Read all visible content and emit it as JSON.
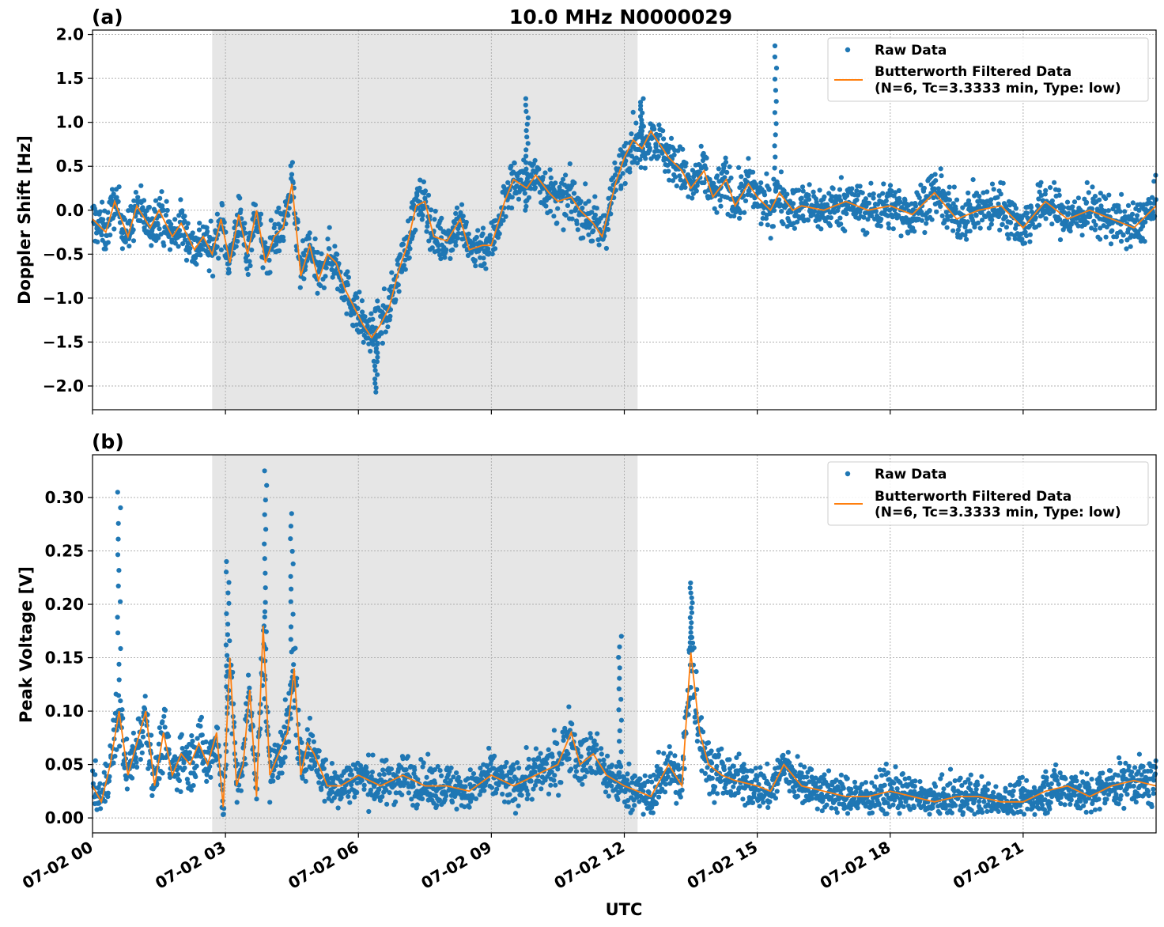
{
  "figure": {
    "title": "10.0 MHz N0000029",
    "xlabel": "UTC",
    "x_tick_labels": [
      "07-02 00",
      "07-02 03",
      "07-02 06",
      "07-02 09",
      "07-02 12",
      "07-02 15",
      "07-02 18",
      "07-02 21"
    ]
  },
  "panels": [
    {
      "label": "(a)",
      "ylabel": "Doppler Shift [Hz]",
      "y_tick_labels": [
        "−2.0",
        "−1.5",
        "−1.0",
        "−0.5",
        "0.0",
        "0.5",
        "1.0",
        "1.5",
        "2.0"
      ],
      "legend": {
        "raw": "Raw Data",
        "filtered_line1": "Butterworth Filtered Data",
        "filtered_line2": "(N=6, Tc=3.3333 min, Type: low)"
      }
    },
    {
      "label": "(b)",
      "ylabel": "Peak Voltage [V]",
      "y_tick_labels": [
        "0.00",
        "0.05",
        "0.10",
        "0.15",
        "0.20",
        "0.25",
        "0.30"
      ],
      "legend": {
        "raw": "Raw Data",
        "filtered_line1": "Butterworth Filtered Data",
        "filtered_line2": "(N=6, Tc=3.3333 min, Type: low)"
      }
    }
  ],
  "colors": {
    "raw": "#1f77b4",
    "filtered": "#ff7f0e",
    "shade": "#e6e6e6",
    "grid": "#b0b0b0"
  },
  "chart_data": [
    {
      "type": "scatter",
      "title": "10.0 MHz N0000029",
      "panel": "(a)",
      "xlabel": "UTC",
      "ylabel": "Doppler Shift [Hz]",
      "x_unit": "hours since 07-02 00:00 UTC",
      "xlim": [
        0,
        24
      ],
      "ylim": [
        -2.27,
        2.05
      ],
      "x_ticks": [
        0,
        3,
        6,
        9,
        12,
        15,
        18,
        21
      ],
      "y_ticks": [
        -2.0,
        -1.5,
        -1.0,
        -0.5,
        0.0,
        0.5,
        1.0,
        1.5,
        2.0
      ],
      "grid": true,
      "legend_position": "upper right",
      "shaded_x_range": [
        2.7,
        12.3
      ],
      "series": [
        {
          "name": "Butterworth Filtered Data",
          "style": "line",
          "x": [
            0,
            0.3,
            0.5,
            0.8,
            1.0,
            1.3,
            1.5,
            1.8,
            2.0,
            2.3,
            2.5,
            2.7,
            2.9,
            3.1,
            3.3,
            3.5,
            3.7,
            3.9,
            4.1,
            4.3,
            4.5,
            4.7,
            4.9,
            5.1,
            5.3,
            5.5,
            5.7,
            5.9,
            6.1,
            6.3,
            6.5,
            6.7,
            6.9,
            7.1,
            7.3,
            7.5,
            7.7,
            8.0,
            8.3,
            8.5,
            8.8,
            9.0,
            9.3,
            9.5,
            9.8,
            10.0,
            10.3,
            10.5,
            10.8,
            11.0,
            11.3,
            11.5,
            11.8,
            12.0,
            12.2,
            12.4,
            12.6,
            12.8,
            13.0,
            13.3,
            13.5,
            13.8,
            14.0,
            14.3,
            14.5,
            14.8,
            15.0,
            15.3,
            15.5,
            15.8,
            16.0,
            16.5,
            17.0,
            17.5,
            18.0,
            18.5,
            19.0,
            19.5,
            20.0,
            20.5,
            21.0,
            21.5,
            22.0,
            22.5,
            23.0,
            23.5,
            24.0
          ],
          "y": [
            -0.1,
            -0.25,
            0.1,
            -0.3,
            0.05,
            -0.2,
            0.0,
            -0.3,
            -0.15,
            -0.45,
            -0.3,
            -0.5,
            -0.1,
            -0.6,
            -0.05,
            -0.5,
            0.0,
            -0.6,
            -0.3,
            -0.2,
            0.3,
            -0.75,
            -0.4,
            -0.8,
            -0.5,
            -0.6,
            -0.9,
            -1.1,
            -1.3,
            -1.45,
            -1.3,
            -1.1,
            -0.7,
            -0.4,
            0.05,
            0.1,
            -0.3,
            -0.35,
            -0.1,
            -0.45,
            -0.4,
            -0.4,
            0.1,
            0.35,
            0.25,
            0.4,
            0.2,
            0.1,
            0.15,
            0.0,
            -0.15,
            -0.3,
            0.3,
            0.6,
            0.8,
            0.7,
            0.9,
            0.75,
            0.6,
            0.45,
            0.25,
            0.45,
            0.15,
            0.35,
            0.05,
            0.3,
            0.15,
            0.0,
            0.2,
            0.0,
            0.05,
            0.0,
            0.1,
            0.0,
            0.05,
            -0.05,
            0.2,
            -0.1,
            0.0,
            0.05,
            -0.2,
            0.1,
            -0.1,
            0.0,
            -0.1,
            -0.2,
            0.05
          ]
        },
        {
          "name": "Raw Data",
          "style": "dots",
          "description_envelope": "dense scatter around the filtered curve, spread about ±0.3 Hz",
          "peaks": [
            {
              "x": 15.4,
              "y": 1.87
            },
            {
              "x": 9.8,
              "y": 1.27
            },
            {
              "x": 12.4,
              "y": 1.27
            },
            {
              "x": 6.4,
              "y": -2.07
            }
          ]
        }
      ]
    },
    {
      "type": "scatter",
      "panel": "(b)",
      "xlabel": "UTC",
      "ylabel": "Peak Voltage [V]",
      "x_unit": "hours since 07-02 00:00 UTC",
      "xlim": [
        0,
        24
      ],
      "ylim": [
        -0.014,
        0.34
      ],
      "x_ticks": [
        0,
        3,
        6,
        9,
        12,
        15,
        18,
        21
      ],
      "y_ticks": [
        0.0,
        0.05,
        0.1,
        0.15,
        0.2,
        0.25,
        0.3
      ],
      "grid": true,
      "legend_position": "upper right",
      "shaded_x_range": [
        2.7,
        12.3
      ],
      "series": [
        {
          "name": "Butterworth Filtered Data",
          "style": "line",
          "x": [
            0,
            0.2,
            0.4,
            0.6,
            0.8,
            1.0,
            1.2,
            1.4,
            1.6,
            1.8,
            2.0,
            2.2,
            2.4,
            2.6,
            2.8,
            2.95,
            3.1,
            3.25,
            3.4,
            3.55,
            3.7,
            3.85,
            4.0,
            4.2,
            4.4,
            4.55,
            4.7,
            4.85,
            5.0,
            5.3,
            5.6,
            6.0,
            6.5,
            7.0,
            7.5,
            8.0,
            8.5,
            9.0,
            9.5,
            10.0,
            10.5,
            10.8,
            11.0,
            11.3,
            11.6,
            12.0,
            12.3,
            12.6,
            13.0,
            13.3,
            13.5,
            13.7,
            13.9,
            14.2,
            14.5,
            15.0,
            15.3,
            15.6,
            16.0,
            16.5,
            17.0,
            17.5,
            18.0,
            18.5,
            19.0,
            19.5,
            20.0,
            20.5,
            21.0,
            21.5,
            22.0,
            22.5,
            23.0,
            23.5,
            24.0
          ],
          "y": [
            0.03,
            0.015,
            0.05,
            0.1,
            0.04,
            0.07,
            0.1,
            0.03,
            0.08,
            0.04,
            0.06,
            0.05,
            0.07,
            0.05,
            0.08,
            0.01,
            0.15,
            0.03,
            0.05,
            0.12,
            0.02,
            0.18,
            0.04,
            0.06,
            0.08,
            0.14,
            0.04,
            0.07,
            0.06,
            0.03,
            0.03,
            0.04,
            0.03,
            0.04,
            0.03,
            0.03,
            0.025,
            0.04,
            0.03,
            0.04,
            0.05,
            0.08,
            0.05,
            0.06,
            0.04,
            0.03,
            0.025,
            0.02,
            0.05,
            0.03,
            0.155,
            0.08,
            0.05,
            0.04,
            0.035,
            0.03,
            0.025,
            0.05,
            0.03,
            0.025,
            0.02,
            0.02,
            0.025,
            0.02,
            0.015,
            0.02,
            0.02,
            0.015,
            0.015,
            0.025,
            0.03,
            0.02,
            0.03,
            0.035,
            0.03
          ]
        },
        {
          "name": "Raw Data",
          "style": "dots",
          "description_envelope": "dense scatter above and below the filtered curve, mostly 0.00–0.10 V",
          "peaks": [
            {
              "x": 3.9,
              "y": 0.325
            },
            {
              "x": 0.6,
              "y": 0.305
            },
            {
              "x": 4.5,
              "y": 0.285
            },
            {
              "x": 3.05,
              "y": 0.24
            },
            {
              "x": 13.5,
              "y": 0.22
            },
            {
              "x": 11.9,
              "y": 0.17
            }
          ]
        }
      ]
    }
  ]
}
